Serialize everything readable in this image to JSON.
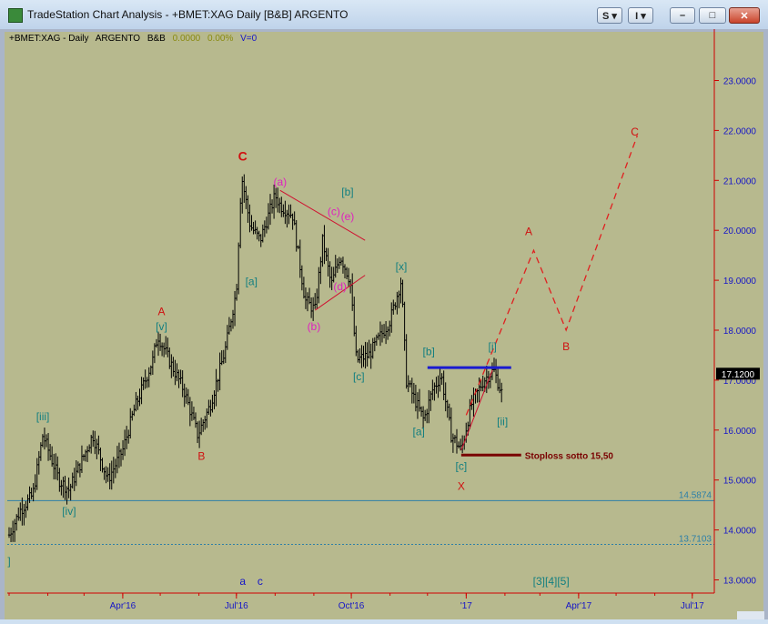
{
  "window": {
    "title": "TradeStation Chart Analysis - +BMET:XAG Daily [B&B] ARGENTO",
    "btn_s": "S ▾",
    "btn_i": "I ▾",
    "minimize": "–",
    "restore": "□",
    "close": "✕"
  },
  "chart_data": {
    "type": "ohlc",
    "header": {
      "symbol": "+BMET:XAG - Daily",
      "name": "ARGENTO",
      "study": "B&B",
      "value1": "0.0000",
      "value2": "0.00%",
      "volume": "V=0"
    },
    "colors": {
      "background": "#b7b98e",
      "bars": "#000000",
      "axis_red": "#d00000",
      "wave_teal": "#127f80",
      "wave_red": "#d01010",
      "wave_magenta": "#e020c0",
      "wave_blue": "#1515c8",
      "resistance": "#1a1ad0",
      "stoploss": "#7a0000"
    },
    "y_range": [
      12.7,
      24.0
    ],
    "y_ticks": [
      "13.0000",
      "14.0000",
      "15.0000",
      "16.0000",
      "17.0000",
      "18.0000",
      "19.0000",
      "20.0000",
      "21.0000",
      "22.0000",
      "23.0000"
    ],
    "last_price": "17.1200",
    "x_labels": [
      "Apr'16",
      "Jul'16",
      "Oct'16",
      "'17",
      "Apr'17",
      "Jul'17"
    ],
    "levels": [
      {
        "value": 14.5874,
        "label": "14.5874",
        "style": "solid"
      },
      {
        "value": 13.7103,
        "label": "13.7103",
        "style": "dotted"
      }
    ],
    "price_path": [
      [
        "2016-01-01",
        13.9
      ],
      [
        "2016-01-10",
        14.4
      ],
      [
        "2016-01-20",
        14.7
      ],
      [
        "2016-01-28",
        15.9
      ],
      [
        "2016-02-10",
        15.0
      ],
      [
        "2016-02-18",
        14.8
      ],
      [
        "2016-03-08",
        15.9
      ],
      [
        "2016-03-20",
        15.0
      ],
      [
        "2016-04-01",
        15.6
      ],
      [
        "2016-04-10",
        16.4
      ],
      [
        "2016-04-25",
        17.4
      ],
      [
        "2016-04-29",
        17.9
      ],
      [
        "2016-05-10",
        17.3
      ],
      [
        "2016-05-20",
        16.8
      ],
      [
        "2016-05-31",
        15.9
      ],
      [
        "2016-06-10",
        16.5
      ],
      [
        "2016-06-22",
        17.6
      ],
      [
        "2016-07-01",
        18.8
      ],
      [
        "2016-07-05",
        21.1
      ],
      [
        "2016-07-12",
        20.1
      ],
      [
        "2016-07-20",
        19.8
      ],
      [
        "2016-08-01",
        20.7
      ],
      [
        "2016-08-05",
        20.5
      ],
      [
        "2016-08-15",
        20.3
      ],
      [
        "2016-08-25",
        18.6
      ],
      [
        "2016-09-02",
        18.4
      ],
      [
        "2016-09-08",
        19.8
      ],
      [
        "2016-09-15",
        18.9
      ],
      [
        "2016-09-22",
        19.5
      ],
      [
        "2016-09-30",
        19.0
      ],
      [
        "2016-10-05",
        17.4
      ],
      [
        "2016-10-15",
        17.5
      ],
      [
        "2016-11-01",
        18.2
      ],
      [
        "2016-11-10",
        19.0
      ],
      [
        "2016-11-14",
        17.0
      ],
      [
        "2016-11-28",
        16.2
      ],
      [
        "2016-12-05",
        16.8
      ],
      [
        "2016-12-12",
        17.1
      ],
      [
        "2016-12-20",
        15.9
      ],
      [
        "2016-12-28",
        15.6
      ],
      [
        "2017-01-05",
        16.5
      ],
      [
        "2017-01-15",
        17.0
      ],
      [
        "2017-01-23",
        17.2
      ],
      [
        "2017-01-30",
        16.7
      ]
    ],
    "wave_labels": [
      {
        "text": "C",
        "color": "red",
        "date": "2016-07-06",
        "price": 21.4,
        "bold": true
      },
      {
        "text": "A",
        "color": "red",
        "date": "2016-05-02",
        "price": 18.3
      },
      {
        "text": "B",
        "color": "red",
        "date": "2016-06-03",
        "price": 15.4
      },
      {
        "text": "[v]",
        "color": "teal",
        "date": "2016-05-02",
        "price": 18.0
      },
      {
        "text": "[iii]",
        "color": "teal",
        "date": "2016-01-28",
        "price": 16.2
      },
      {
        "text": "[iv]",
        "color": "teal",
        "date": "2016-02-18",
        "price": 14.3
      },
      {
        "text": "]",
        "color": "teal",
        "date": "2016-01-01",
        "price": 13.3
      },
      {
        "text": "[a]",
        "color": "teal",
        "date": "2016-07-13",
        "price": 18.9
      },
      {
        "text": "(a)",
        "color": "magenta",
        "date": "2016-08-05",
        "price": 20.9
      },
      {
        "text": "(b)",
        "color": "magenta",
        "date": "2016-09-01",
        "price": 18.0
      },
      {
        "text": "(c)",
        "color": "magenta",
        "date": "2016-09-17",
        "price": 20.3
      },
      {
        "text": "(d)",
        "color": "magenta",
        "date": "2016-09-22",
        "price": 18.8
      },
      {
        "text": "(e)",
        "color": "magenta",
        "date": "2016-09-28",
        "price": 20.2
      },
      {
        "text": "[b]",
        "color": "teal",
        "date": "2016-09-28",
        "price": 20.7
      },
      {
        "text": "[c]",
        "color": "teal",
        "date": "2016-10-07",
        "price": 17.0
      },
      {
        "text": "[x]",
        "color": "teal",
        "date": "2016-11-10",
        "price": 19.2
      },
      {
        "text": "[a]",
        "color": "teal",
        "date": "2016-11-24",
        "price": 15.9
      },
      {
        "text": "[b]",
        "color": "teal",
        "date": "2016-12-02",
        "price": 17.5
      },
      {
        "text": "[c]",
        "color": "teal",
        "date": "2016-12-28",
        "price": 15.2
      },
      {
        "text": "X",
        "color": "red",
        "date": "2016-12-28",
        "price": 14.8
      },
      {
        "text": "[i]",
        "color": "teal",
        "date": "2017-01-22",
        "price": 17.6
      },
      {
        "text": "[ii]",
        "color": "teal",
        "date": "2017-01-30",
        "price": 16.1
      },
      {
        "text": "A",
        "color": "red",
        "date": "2017-02-20",
        "price": 19.9
      },
      {
        "text": "B",
        "color": "red",
        "date": "2017-03-22",
        "price": 17.6
      },
      {
        "text": "C",
        "color": "red",
        "date": "2017-05-16",
        "price": 21.9
      },
      {
        "text": "a",
        "color": "blue",
        "date": "2016-07-06",
        "price": 12.9
      },
      {
        "text": "c",
        "color": "blue",
        "date": "2016-07-20",
        "price": 12.9
      },
      {
        "text": "[3][4][5]",
        "color": "teal",
        "date": "2017-03-10",
        "price": 12.9
      }
    ],
    "projection": [
      [
        "2017-01-01",
        16.3
      ],
      [
        "2017-02-24",
        19.6
      ],
      [
        "2017-03-22",
        18.0
      ],
      [
        "2017-05-18",
        21.9
      ]
    ],
    "triangle_upper": [
      [
        "2016-08-05",
        20.8
      ],
      [
        "2016-10-12",
        19.8
      ]
    ],
    "triangle_lower": [
      [
        "2016-09-02",
        18.4
      ],
      [
        "2016-10-12",
        19.1
      ]
    ],
    "rising_line": [
      [
        "2016-12-28",
        15.6
      ],
      [
        "2017-01-22",
        17.2
      ]
    ],
    "resistance_line": [
      [
        "2016-12-01",
        17.25
      ],
      [
        "2017-02-06",
        17.25
      ]
    ],
    "stoploss": {
      "from": "2016-12-28",
      "to": "2017-02-14",
      "value": 15.5,
      "label": "Stoploss  sotto 15,50"
    }
  }
}
